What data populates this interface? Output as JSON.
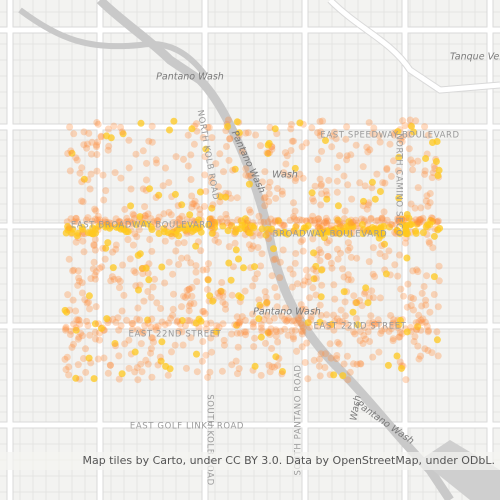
{
  "labels": [
    "Pantano Wash",
    "Tanque Verde",
    "EAST SPEEDWAY BOULEVARD",
    "NORTH KOLB ROAD",
    "Pantano Wash",
    "Wash",
    "EAST BROADWAY BOULEVARD",
    "BROADWAY BOULEVARD",
    "NORTH CAMINO SECO",
    "Pantano Wash",
    "EAST 22ND STREET",
    "EAST 22ND STREET",
    "EAST GOLF LINKS ROAD",
    "SOUTH PANTANO ROAD",
    "Wash",
    "Pantano Wash",
    "SOUTH KOLB ROAD"
  ],
  "attribution": "Map tiles by Carto, under CC BY 3.0. Data by OpenStreetMap, under ODbL."
}
